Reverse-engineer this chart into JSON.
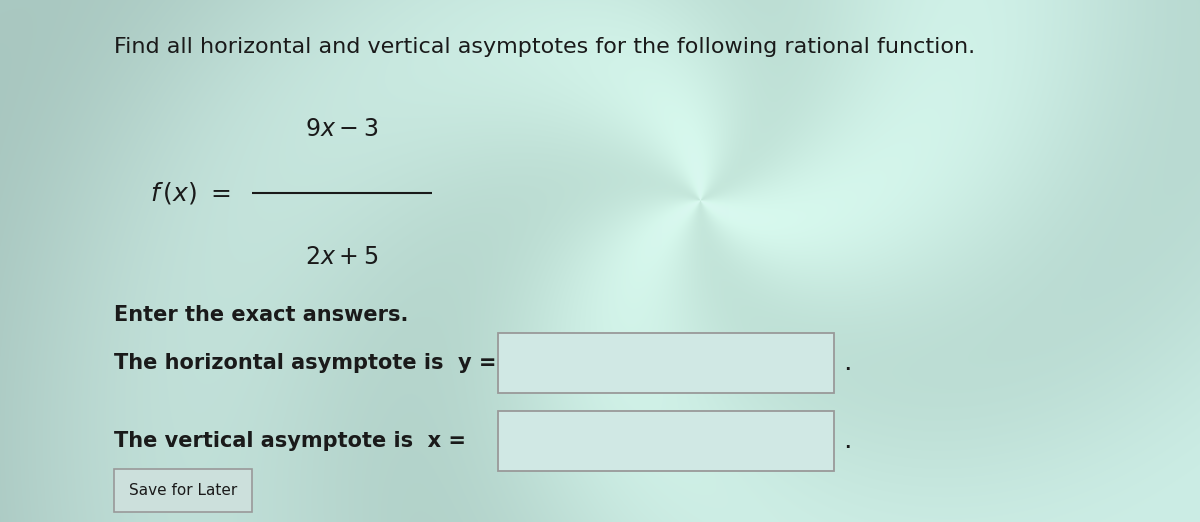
{
  "title": "Find all horizontal and vertical asymptotes for the following rational function.",
  "enter_text": "Enter the exact answers.",
  "horiz_label": "The horizontal asymptote is  y =",
  "vert_label": "The vertical asymptote is  x =",
  "save_button": "Save for Later",
  "bg_color_light": "#b8d8d2",
  "bg_color_mid": "#a0c8c0",
  "text_color": "#1a1a1a",
  "box_facecolor": "#d0e8e4",
  "box_edgecolor": "#999999",
  "font_size_title": 16,
  "font_size_body": 15,
  "font_size_math": 17
}
